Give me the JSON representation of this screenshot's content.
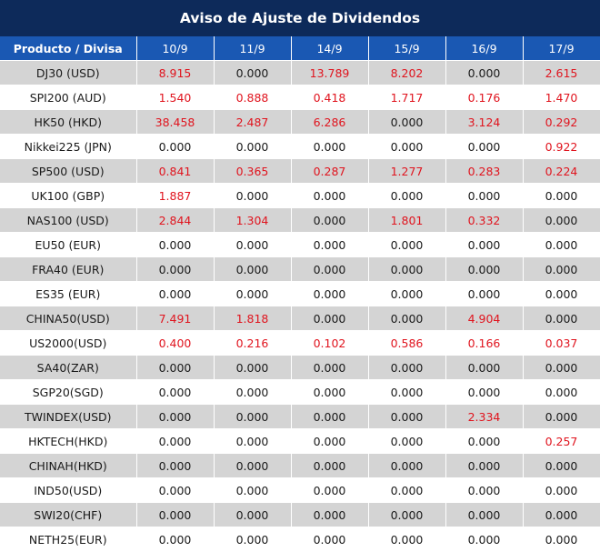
{
  "title": "Aviso de Ajuste de Dividendos",
  "header": {
    "product_label": "Producto / Divisa",
    "dates": [
      "10/9",
      "11/9",
      "14/9",
      "15/9",
      "16/9",
      "17/9"
    ]
  },
  "colors": {
    "title_bg": "#0d2a5a",
    "header_bg": "#1a58b3",
    "positive": "#e0141e",
    "stripe": "#d4d4d4"
  },
  "rows": [
    {
      "product": "DJ30 (USD)",
      "values": [
        "8.915",
        "0.000",
        "13.789",
        "8.202",
        "0.000",
        "2.615"
      ]
    },
    {
      "product": "SPI200 (AUD)",
      "values": [
        "1.540",
        "0.888",
        "0.418",
        "1.717",
        "0.176",
        "1.470"
      ]
    },
    {
      "product": "HK50 (HKD)",
      "values": [
        "38.458",
        "2.487",
        "6.286",
        "0.000",
        "3.124",
        "0.292"
      ]
    },
    {
      "product": "Nikkei225 (JPN)",
      "values": [
        "0.000",
        "0.000",
        "0.000",
        "0.000",
        "0.000",
        "0.922"
      ]
    },
    {
      "product": "SP500 (USD)",
      "values": [
        "0.841",
        "0.365",
        "0.287",
        "1.277",
        "0.283",
        "0.224"
      ]
    },
    {
      "product": "UK100 (GBP)",
      "values": [
        "1.887",
        "0.000",
        "0.000",
        "0.000",
        "0.000",
        "0.000"
      ]
    },
    {
      "product": "NAS100 (USD)",
      "values": [
        "2.844",
        "1.304",
        "0.000",
        "1.801",
        "0.332",
        "0.000"
      ]
    },
    {
      "product": "EU50 (EUR)",
      "values": [
        "0.000",
        "0.000",
        "0.000",
        "0.000",
        "0.000",
        "0.000"
      ]
    },
    {
      "product": "FRA40 (EUR)",
      "values": [
        "0.000",
        "0.000",
        "0.000",
        "0.000",
        "0.000",
        "0.000"
      ]
    },
    {
      "product": "ES35 (EUR)",
      "values": [
        "0.000",
        "0.000",
        "0.000",
        "0.000",
        "0.000",
        "0.000"
      ]
    },
    {
      "product": "CHINA50(USD)",
      "values": [
        "7.491",
        "1.818",
        "0.000",
        "0.000",
        "4.904",
        "0.000"
      ]
    },
    {
      "product": "US2000(USD)",
      "values": [
        "0.400",
        "0.216",
        "0.102",
        "0.586",
        "0.166",
        "0.037"
      ]
    },
    {
      "product": "SA40(ZAR)",
      "values": [
        "0.000",
        "0.000",
        "0.000",
        "0.000",
        "0.000",
        "0.000"
      ]
    },
    {
      "product": "SGP20(SGD)",
      "values": [
        "0.000",
        "0.000",
        "0.000",
        "0.000",
        "0.000",
        "0.000"
      ]
    },
    {
      "product": "TWINDEX(USD)",
      "values": [
        "0.000",
        "0.000",
        "0.000",
        "0.000",
        "2.334",
        "0.000"
      ]
    },
    {
      "product": "HKTECH(HKD)",
      "values": [
        "0.000",
        "0.000",
        "0.000",
        "0.000",
        "0.000",
        "0.257"
      ]
    },
    {
      "product": "CHINAH(HKD)",
      "values": [
        "0.000",
        "0.000",
        "0.000",
        "0.000",
        "0.000",
        "0.000"
      ]
    },
    {
      "product": "IND50(USD)",
      "values": [
        "0.000",
        "0.000",
        "0.000",
        "0.000",
        "0.000",
        "0.000"
      ]
    },
    {
      "product": "SWI20(CHF)",
      "values": [
        "0.000",
        "0.000",
        "0.000",
        "0.000",
        "0.000",
        "0.000"
      ]
    },
    {
      "product": "NETH25(EUR)",
      "values": [
        "0.000",
        "0.000",
        "0.000",
        "0.000",
        "0.000",
        "0.000"
      ]
    }
  ]
}
